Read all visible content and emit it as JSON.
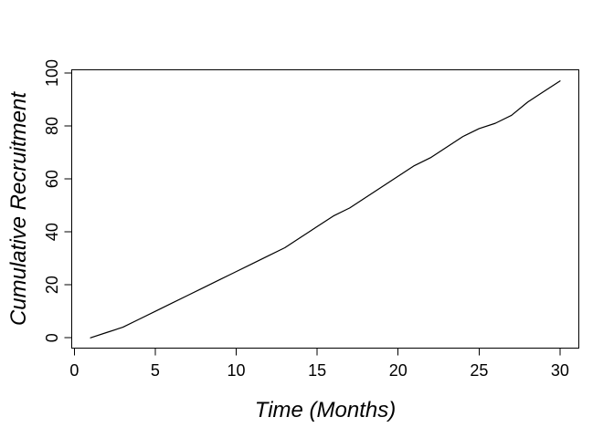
{
  "chart_data": {
    "type": "line",
    "title": "",
    "xlabel": "Time (Months)",
    "ylabel": "Cumulative Recruitment",
    "x": [
      1,
      2,
      3,
      4,
      5,
      6,
      7,
      8,
      9,
      10,
      11,
      12,
      13,
      14,
      15,
      16,
      17,
      18,
      19,
      20,
      21,
      22,
      23,
      24,
      25,
      26,
      27,
      28,
      29,
      30
    ],
    "y": [
      0,
      2,
      4,
      7,
      10,
      13,
      16,
      19,
      22,
      25,
      28,
      31,
      34,
      38,
      42,
      46,
      49,
      53,
      57,
      61,
      65,
      68,
      72,
      76,
      79,
      81,
      84,
      89,
      93,
      97
    ],
    "x_ticks": [
      0,
      5,
      10,
      15,
      20,
      25,
      30
    ],
    "y_ticks": [
      0,
      20,
      40,
      60,
      80,
      100
    ],
    "xlim": [
      -0.16,
      31.16
    ],
    "ylim": [
      -3.9,
      101.2
    ],
    "grid": false,
    "legend": null,
    "line_color": "#000000",
    "axis_color": "#000000",
    "background": "#ffffff"
  }
}
